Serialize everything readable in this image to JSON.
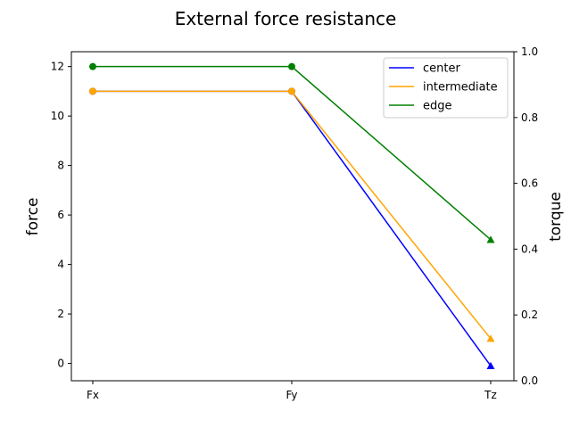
{
  "chart_data": {
    "type": "line",
    "title": "External force resistance",
    "ylabel": "force",
    "y2label": "torque",
    "categories": [
      "Fx",
      "Fy",
      "Tz"
    ],
    "ylim": [
      -0.7,
      12.6
    ],
    "yticks": [
      0,
      2,
      4,
      6,
      8,
      10,
      12
    ],
    "y2lim": [
      0.0,
      1.0
    ],
    "y2ticks": [
      "0.0",
      "0.2",
      "0.4",
      "0.6",
      "0.8",
      "1.0"
    ],
    "legend_position": "top-right",
    "series": [
      {
        "name": "center",
        "color": "#0000ff",
        "values": [
          11,
          11,
          -0.1
        ],
        "markers": [
          "circle",
          "circle",
          "triangle"
        ]
      },
      {
        "name": "intermediate",
        "color": "#ffa500",
        "values": [
          11,
          11,
          1
        ],
        "markers": [
          "circle",
          "circle",
          "triangle"
        ]
      },
      {
        "name": "edge",
        "color": "#008000",
        "values": [
          12,
          12,
          5
        ],
        "markers": [
          "circle",
          "circle",
          "triangle"
        ]
      }
    ]
  }
}
